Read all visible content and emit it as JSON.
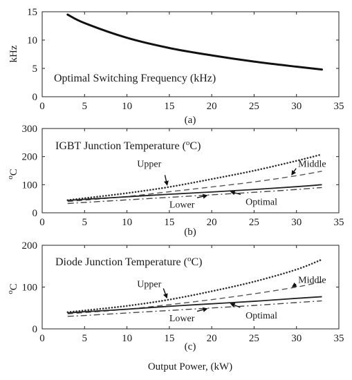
{
  "chart_data": [
    {
      "type": "line",
      "panel_label": "(a)",
      "title": "Optimal Switching Frequency (kHz)",
      "ylabel": "kHz",
      "xlim": [
        0,
        35
      ],
      "ylim": [
        0,
        15
      ],
      "xticks": [
        0,
        5,
        10,
        15,
        20,
        25,
        30,
        35
      ],
      "yticks": [
        0,
        5,
        10,
        15
      ],
      "x": [
        3,
        5,
        10,
        15,
        20,
        25,
        30,
        33
      ],
      "series": [
        {
          "key": "freq",
          "values": [
            14.5,
            13.0,
            10.4,
            8.6,
            7.3,
            6.2,
            5.3,
            4.8
          ],
          "color": "#111111",
          "style": "solid-thick"
        }
      ],
      "annotations": []
    },
    {
      "type": "line",
      "panel_label": "(b)",
      "title_main": "IGBT Junction Temperature (",
      "title_sup": "o",
      "title_end": "C)",
      "ylabel_sup": "o",
      "ylabel_main": "C",
      "xlim": [
        0,
        35
      ],
      "ylim": [
        0,
        300
      ],
      "xticks": [
        0,
        5,
        10,
        15,
        20,
        25,
        30,
        35
      ],
      "yticks": [
        0,
        100,
        200,
        300
      ],
      "x": [
        3,
        5,
        10,
        15,
        20,
        25,
        30,
        33
      ],
      "series": [
        {
          "key": "upper",
          "name": "Upper",
          "values": [
            45,
            52,
            70,
            92,
            120,
            150,
            185,
            208
          ],
          "color": "#333333",
          "style": "dotted"
        },
        {
          "key": "middle",
          "name": "Middle",
          "values": [
            40,
            45,
            58,
            75,
            92,
            110,
            132,
            148
          ],
          "color": "#555555",
          "style": "dashed"
        },
        {
          "key": "optimal",
          "name": "Optimal",
          "values": [
            44,
            48,
            57,
            66,
            74,
            83,
            93,
            100
          ],
          "color": "#222222",
          "style": "solid"
        },
        {
          "key": "lower",
          "name": "Lower",
          "values": [
            33,
            37,
            46,
            55,
            64,
            73,
            83,
            90
          ],
          "color": "#444444",
          "style": "dashdot"
        }
      ],
      "annotations": [
        {
          "text": "Upper",
          "series": "upper",
          "point_x": 14.8,
          "label_x": 11.2,
          "label_y": 163
        },
        {
          "text": "Middle",
          "series": "middle",
          "point_x": 29.3,
          "label_x": 30.2,
          "label_y": 163
        },
        {
          "text": "Lower",
          "series": "lower",
          "point_x": 19.7,
          "label_x": 15.0,
          "label_y": 18
        },
        {
          "text": "Optimal",
          "series": "optimal",
          "point_x": 22.0,
          "label_x": 24.0,
          "label_y": 28
        }
      ]
    },
    {
      "type": "line",
      "panel_label": "(c)",
      "title_main": "Diode Junction Temperature (",
      "title_sup": "o",
      "title_end": "C)",
      "ylabel_sup": "o",
      "ylabel_main": "C",
      "xlabel": "Output Power, (kW)",
      "xlim": [
        0,
        35
      ],
      "ylim": [
        0,
        200
      ],
      "xticks": [
        0,
        5,
        10,
        15,
        20,
        25,
        30,
        35
      ],
      "yticks": [
        0,
        100,
        200
      ],
      "x": [
        3,
        5,
        10,
        15,
        20,
        25,
        30,
        33
      ],
      "series": [
        {
          "key": "upper",
          "name": "Upper",
          "values": [
            40,
            44,
            55,
            70,
            90,
            113,
            142,
            166
          ],
          "color": "#333333",
          "style": "dotted"
        },
        {
          "key": "middle",
          "name": "Middle",
          "values": [
            36,
            39,
            47,
            58,
            70,
            84,
            100,
            113
          ],
          "color": "#555555",
          "style": "dashed"
        },
        {
          "key": "optimal",
          "name": "Optimal",
          "values": [
            38,
            41,
            47,
            54,
            60,
            66,
            73,
            77
          ],
          "color": "#222222",
          "style": "solid"
        },
        {
          "key": "lower",
          "name": "Lower",
          "values": [
            30,
            32,
            38,
            44,
            50,
            56,
            63,
            67
          ],
          "color": "#444444",
          "style": "dashdot"
        }
      ],
      "annotations": [
        {
          "text": "Upper",
          "series": "upper",
          "point_x": 14.8,
          "label_x": 11.2,
          "label_y": 100
        },
        {
          "text": "Middle",
          "series": "middle",
          "point_x": 29.3,
          "label_x": 30.2,
          "label_y": 110
        },
        {
          "text": "Lower",
          "series": "lower",
          "point_x": 19.7,
          "label_x": 15.0,
          "label_y": 18
        },
        {
          "text": "Optimal",
          "series": "optimal",
          "point_x": 22.0,
          "label_x": 24.0,
          "label_y": 25
        }
      ]
    }
  ]
}
